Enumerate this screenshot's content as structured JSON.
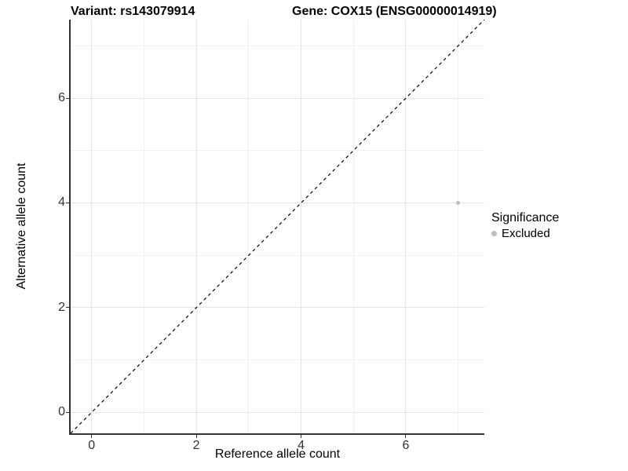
{
  "chart_data": {
    "type": "scatter",
    "title_left": "Variant: rs143079914",
    "title_right": "Gene: COX15 (ENSG00000014919)",
    "xlabel": "Reference allele count",
    "ylabel": "Alternative allele count",
    "xlim": [
      -0.4,
      7.5
    ],
    "ylim": [
      -0.4,
      7.5
    ],
    "x_ticks": [
      0,
      2,
      4,
      6
    ],
    "y_ticks": [
      0,
      2,
      4,
      6
    ],
    "x_minor_gridlines": [
      1,
      3,
      5,
      7
    ],
    "y_minor_gridlines": [
      1,
      3,
      5,
      7
    ],
    "grid": "major and minor gridlines on white panel",
    "major_grid_color": "#e4e4e4",
    "minor_grid_color": "#f1f1f1",
    "axis_line_color": "#333333",
    "identity_line": {
      "equation": "y = x",
      "style": "dashed",
      "color": "#000000"
    },
    "series": [
      {
        "name": "Excluded",
        "color": "#bebebe",
        "points": [
          {
            "x": 7,
            "y": 4
          }
        ]
      }
    ],
    "legend": {
      "title": "Significance",
      "position": "right",
      "entries": [
        {
          "label": "Excluded",
          "color": "#bebebe"
        }
      ]
    }
  }
}
